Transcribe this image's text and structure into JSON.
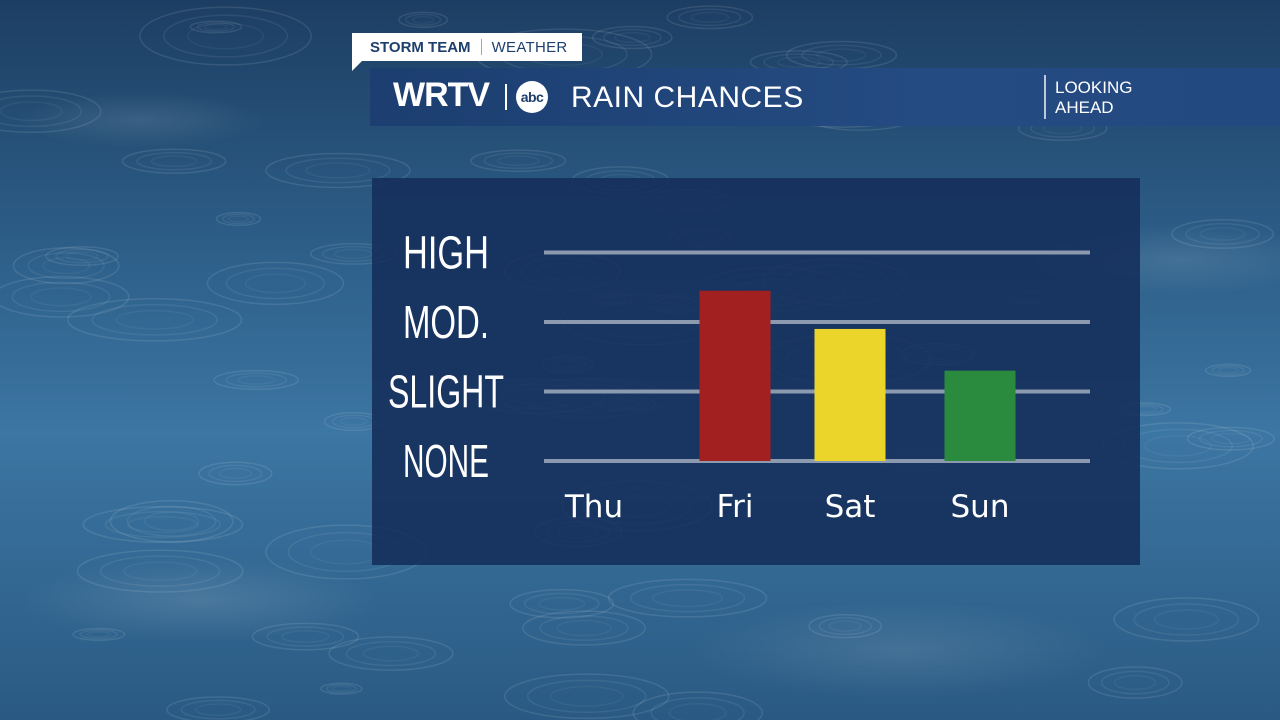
{
  "header": {
    "tag_team": "STORM TEAM",
    "tag_section": "WEATHER",
    "logo": "WRTV",
    "network": "abc",
    "title": "RAIN CHANCES",
    "subtitle_line1": "LOOKING",
    "subtitle_line2": "AHEAD"
  },
  "chart_data": {
    "type": "bar",
    "categories": [
      "Thu",
      "Fri",
      "Sat",
      "Sun"
    ],
    "values": [
      0,
      2.45,
      1.9,
      1.3
    ],
    "levels": [
      "NONE",
      "SLIGHT",
      "MOD.",
      "HIGH"
    ],
    "ylim": [
      0,
      3
    ],
    "grid": true,
    "colors": [
      "#a32020",
      "#a32020",
      "#ecd52a",
      "#2a8a3e"
    ]
  }
}
